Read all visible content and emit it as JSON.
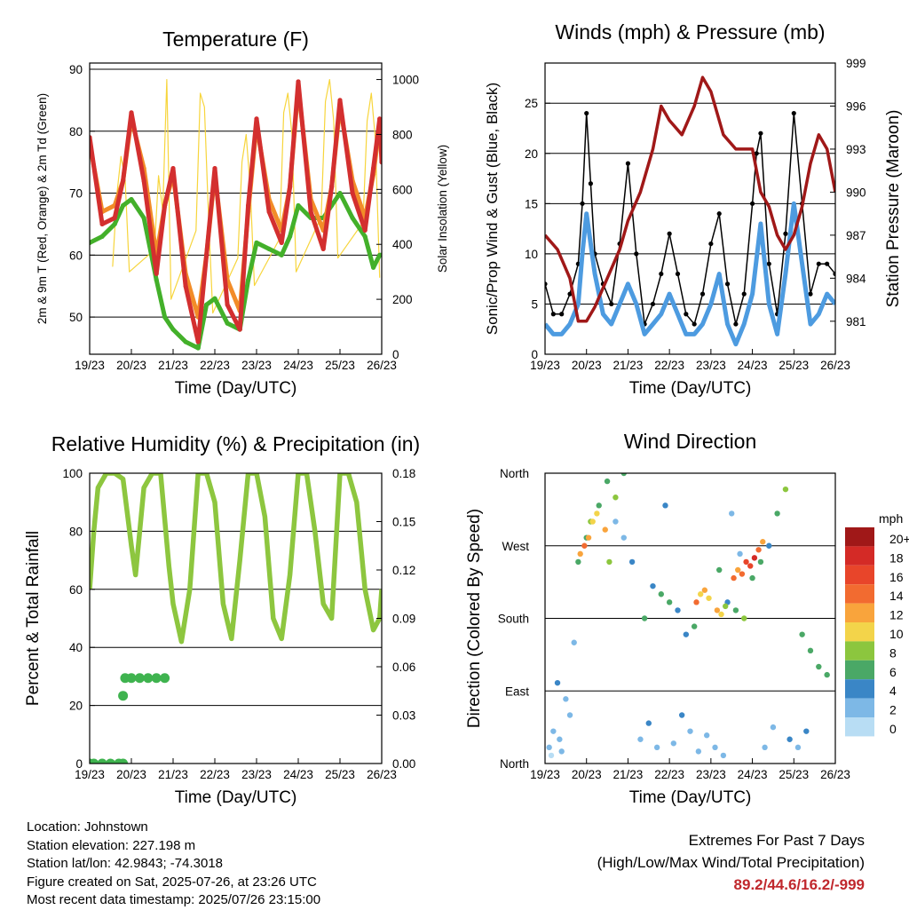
{
  "chart_data": [
    {
      "type": "line",
      "title": "Temperature (F)",
      "xlabel": "Time (Day/UTC)",
      "ylabel": "2m & 9m T (Red, Orange) & 2m Td (Green)",
      "y2label": "Solar Insolation (Yellow)",
      "x_ticks": [
        "19/23",
        "20/23",
        "21/23",
        "22/23",
        "23/23",
        "24/23",
        "25/23",
        "26/23"
      ],
      "xlim": [
        0,
        7
      ],
      "ylim": [
        44,
        91
      ],
      "yticks": [
        50,
        60,
        70,
        80,
        90
      ],
      "y2lim": [
        0,
        1060
      ],
      "y2ticks": [
        0,
        200,
        400,
        600,
        800,
        1000
      ],
      "colors": {
        "t2m": "#d32f2f",
        "t9m": "#f28c28",
        "td": "#43b02a",
        "solar": "#f7d53c"
      },
      "series": [
        {
          "key": "t2m",
          "x": [
            0,
            0.3,
            0.6,
            0.8,
            1.0,
            1.3,
            1.6,
            1.8,
            2.0,
            2.3,
            2.6,
            2.8,
            3.0,
            3.3,
            3.6,
            3.8,
            4.0,
            4.3,
            4.6,
            4.8,
            5.0,
            5.3,
            5.6,
            5.8,
            6.0,
            6.3,
            6.6,
            6.8,
            6.95,
            7.0
          ],
          "y": [
            79,
            65,
            66,
            72,
            83,
            72,
            57,
            68,
            74,
            55,
            46,
            60,
            74,
            52,
            48,
            68,
            82,
            67,
            62,
            71,
            88,
            67,
            61,
            71,
            85,
            70,
            64,
            74,
            82,
            75
          ]
        },
        {
          "key": "t9m",
          "x": [
            0,
            0.3,
            0.6,
            0.8,
            1.0,
            1.3,
            1.6,
            1.8,
            2.0,
            2.3,
            2.6,
            2.8,
            3.0,
            3.3,
            3.6,
            3.8,
            4.0,
            4.3,
            4.6,
            4.8,
            5.0,
            5.3,
            5.6,
            5.8,
            6.0,
            6.3,
            6.6,
            6.8,
            6.95,
            7.0
          ],
          "y": [
            78,
            67,
            68,
            72,
            82,
            74,
            60,
            68,
            73,
            57,
            50,
            60,
            73,
            56,
            51,
            67,
            81,
            69,
            64,
            71,
            87,
            69,
            64,
            71,
            84,
            72,
            66,
            73,
            81,
            76
          ]
        },
        {
          "key": "td",
          "x": [
            0,
            0.3,
            0.6,
            0.8,
            1.0,
            1.3,
            1.6,
            1.8,
            2.0,
            2.3,
            2.6,
            2.8,
            3.0,
            3.3,
            3.6,
            3.8,
            4.0,
            4.3,
            4.6,
            4.8,
            5.0,
            5.3,
            5.6,
            5.8,
            6.0,
            6.3,
            6.6,
            6.8,
            6.95,
            7.0
          ],
          "y": [
            62,
            63,
            65,
            68,
            69,
            66,
            56,
            50,
            48,
            46,
            45,
            52,
            53,
            49,
            48,
            56,
            62,
            61,
            60,
            63,
            68,
            66,
            66,
            68,
            70,
            66,
            63,
            58,
            60,
            60
          ]
        },
        {
          "key": "solar",
          "x": [
            0.55,
            0.65,
            0.75,
            0.85,
            0.95,
            1.55,
            1.65,
            1.75,
            1.85,
            1.95,
            2.55,
            2.65,
            2.75,
            2.85,
            2.95,
            3.55,
            3.65,
            3.75,
            3.85,
            3.95,
            4.55,
            4.65,
            4.75,
            4.85,
            4.95,
            5.55,
            5.65,
            5.75,
            5.85,
            5.95,
            6.55,
            6.65,
            6.75,
            6.85,
            6.95
          ],
          "y": [
            320,
            580,
            720,
            640,
            300,
            380,
            650,
            520,
            1000,
            200,
            450,
            950,
            900,
            500,
            150,
            350,
            700,
            800,
            600,
            250,
            420,
            880,
            950,
            800,
            300,
            500,
            920,
            1000,
            850,
            350,
            480,
            850,
            950,
            780,
            280
          ]
        }
      ]
    },
    {
      "type": "line",
      "title": "Winds (mph) & Pressure (mb)",
      "xlabel": "Time (Day/UTC)",
      "ylabel": "Sonic/Prop Wind & Gust (Blue, Black)",
      "y2label": "Station Pressure (Maroon)",
      "x_ticks": [
        "19/23",
        "20/23",
        "21/23",
        "22/23",
        "23/23",
        "24/23",
        "25/23",
        "26/23"
      ],
      "xlim": [
        0,
        7
      ],
      "ylim": [
        0,
        29
      ],
      "yticks": [
        0,
        5,
        10,
        15,
        20,
        25
      ],
      "y2lim": [
        978.7,
        999
      ],
      "y2ticks": [
        981,
        984,
        987,
        990,
        993,
        996,
        999
      ],
      "colors": {
        "wind": "#4d9be0",
        "gust": "#000000",
        "pressure": "#a01818"
      },
      "series": [
        {
          "key": "wind",
          "x": [
            0,
            0.2,
            0.4,
            0.6,
            0.8,
            0.9,
            1.0,
            1.2,
            1.4,
            1.6,
            1.8,
            2.0,
            2.2,
            2.4,
            2.6,
            2.8,
            3.0,
            3.2,
            3.4,
            3.6,
            3.8,
            4.0,
            4.2,
            4.4,
            4.6,
            4.8,
            5.0,
            5.2,
            5.4,
            5.6,
            5.8,
            6.0,
            6.2,
            6.4,
            6.6,
            6.8,
            7.0
          ],
          "y": [
            3,
            2,
            2,
            3,
            5,
            10,
            14,
            8,
            4,
            3,
            5,
            7,
            5,
            2,
            3,
            4,
            6,
            4,
            2,
            2,
            3,
            5,
            8,
            3,
            1,
            3,
            6,
            13,
            5,
            2,
            8,
            15,
            9,
            3,
            4,
            6,
            5
          ]
        },
        {
          "key": "gust",
          "x": [
            0,
            0.2,
            0.4,
            0.6,
            0.8,
            0.9,
            1.0,
            1.1,
            1.2,
            1.4,
            1.6,
            1.8,
            2.0,
            2.2,
            2.4,
            2.6,
            2.8,
            3.0,
            3.2,
            3.4,
            3.6,
            3.8,
            4.0,
            4.2,
            4.4,
            4.6,
            4.8,
            5.0,
            5.1,
            5.2,
            5.4,
            5.6,
            5.8,
            6.0,
            6.2,
            6.4,
            6.6,
            6.8,
            7.0
          ],
          "y": [
            7,
            4,
            4,
            6,
            9,
            15,
            24,
            17,
            10,
            7,
            5,
            11,
            19,
            10,
            3,
            5,
            8,
            12,
            8,
            4,
            3,
            6,
            11,
            14,
            7,
            3,
            6,
            15,
            20,
            22,
            9,
            4,
            12,
            24,
            15,
            6,
            9,
            9,
            8
          ]
        },
        {
          "key": "pressure",
          "x": [
            0,
            0.3,
            0.6,
            0.8,
            1.0,
            1.2,
            1.5,
            1.8,
            2.0,
            2.3,
            2.6,
            2.8,
            3.0,
            3.3,
            3.6,
            3.8,
            4.0,
            4.3,
            4.6,
            4.8,
            5.0,
            5.2,
            5.4,
            5.6,
            5.8,
            6.0,
            6.2,
            6.4,
            6.6,
            6.8,
            7.0
          ],
          "y": [
            987,
            986,
            984,
            981,
            981,
            982,
            984,
            986,
            988,
            990,
            993,
            996,
            995,
            994,
            996,
            998,
            997,
            994,
            993,
            993,
            993,
            990,
            989,
            987,
            986,
            987,
            989,
            992,
            994,
            993,
            990
          ]
        }
      ]
    },
    {
      "type": "line",
      "title": "Relative Humidity (%) & Precipitation (in)",
      "xlabel": "Time (Day/UTC)",
      "ylabel": "Percent & Total Rainfall",
      "x_ticks": [
        "19/23",
        "20/23",
        "21/23",
        "22/23",
        "23/23",
        "24/23",
        "25/23",
        "26/23"
      ],
      "xlim": [
        0,
        7
      ],
      "ylim": [
        0,
        100
      ],
      "yticks": [
        0,
        20,
        40,
        60,
        80,
        100
      ],
      "y2lim": [
        0,
        0.18
      ],
      "y2ticks": [
        "0.00",
        "0.03",
        "0.06",
        "0.09",
        "0.12",
        "0.15",
        "0.18"
      ],
      "colors": {
        "rh": "#8dc63f",
        "precip": "#3fb34f"
      },
      "series": [
        {
          "key": "rh",
          "x": [
            0,
            0.1,
            0.2,
            0.4,
            0.6,
            0.8,
            1.0,
            1.1,
            1.3,
            1.5,
            1.7,
            1.9,
            2.0,
            2.2,
            2.4,
            2.6,
            2.8,
            3.0,
            3.2,
            3.4,
            3.6,
            3.8,
            4.0,
            4.2,
            4.4,
            4.6,
            4.8,
            5.0,
            5.2,
            5.4,
            5.6,
            5.8,
            6.0,
            6.2,
            6.4,
            6.6,
            6.8,
            6.95,
            7.0
          ],
          "y": [
            60,
            80,
            95,
            100,
            100,
            98,
            75,
            65,
            95,
            100,
            100,
            68,
            55,
            42,
            60,
            100,
            100,
            90,
            55,
            43,
            70,
            100,
            100,
            85,
            50,
            43,
            65,
            100,
            100,
            80,
            55,
            50,
            100,
            100,
            90,
            60,
            46,
            50,
            60
          ]
        },
        {
          "key": "precip",
          "x": [
            0,
            0.1,
            0.3,
            0.5,
            0.7,
            0.8,
            0.8,
            0.85,
            1.0,
            1.2,
            1.4,
            1.6,
            1.8
          ],
          "y": [
            0,
            0,
            0,
            0,
            0,
            0,
            0.042,
            0.053,
            0.053,
            0.053,
            0.053,
            0.053,
            0.053
          ]
        }
      ]
    },
    {
      "type": "scatter",
      "title": "Wind Direction",
      "xlabel": "Time (Day/UTC)",
      "ylabel": "Direction (Colored By Speed)",
      "x_ticks": [
        "19/23",
        "20/23",
        "21/23",
        "22/23",
        "23/23",
        "24/23",
        "25/23",
        "26/23"
      ],
      "xlim": [
        0,
        7
      ],
      "ylim": [
        0,
        360
      ],
      "ytick_labels": [
        "North",
        "East",
        "South",
        "West",
        "North"
      ],
      "legend_title": "mph",
      "legend_labels": [
        "20+",
        "18",
        "16",
        "14",
        "12",
        "10",
        "8",
        "6",
        "4",
        "2",
        "0"
      ],
      "legend_colors": [
        "#a01818",
        "#d42a26",
        "#e8452a",
        "#f26b30",
        "#f9a43c",
        "#f3d44a",
        "#8cc63e",
        "#4aa866",
        "#3a86c6",
        "#7db8e6",
        "#b8ddf4"
      ],
      "series": [
        {
          "name": "low",
          "x": [
            0.1,
            0.2,
            0.4,
            0.6,
            0.3,
            0.5,
            0.15,
            0.35,
            2.3,
            2.5,
            2.7,
            3.1,
            3.3,
            3.5,
            3.7,
            3.9,
            4.1,
            4.3,
            5.9,
            6.1,
            6.3,
            0.7,
            1.7,
            1.9,
            2.1,
            2.9,
            4.5,
            4.7,
            5.3,
            5.5
          ],
          "y": [
            20,
            40,
            15,
            60,
            100,
            80,
            10,
            30,
            30,
            50,
            20,
            25,
            60,
            40,
            15,
            35,
            20,
            10,
            30,
            20,
            40,
            150,
            300,
            280,
            250,
            320,
            310,
            260,
            20,
            45
          ],
          "speed": [
            1,
            2,
            1,
            2,
            3,
            1,
            0,
            2,
            2,
            3,
            1,
            2,
            3,
            2,
            1,
            2,
            2,
            1,
            3,
            2,
            3,
            2,
            2,
            1,
            3,
            3,
            2,
            2,
            1,
            2
          ]
        },
        {
          "name": "mid",
          "x": [
            0.8,
            1.0,
            1.1,
            1.3,
            1.5,
            1.7,
            1.9,
            2.4,
            2.6,
            2.8,
            3.0,
            3.2,
            3.4,
            3.6,
            4.2,
            4.4,
            4.6,
            4.8,
            5.0,
            5.2,
            5.4,
            5.6,
            5.8,
            6.2,
            6.4,
            6.6,
            6.8
          ],
          "y": [
            250,
            280,
            300,
            320,
            350,
            330,
            360,
            180,
            220,
            210,
            200,
            190,
            160,
            170,
            240,
            200,
            190,
            180,
            230,
            250,
            270,
            310,
            340,
            160,
            140,
            120,
            110
          ],
          "speed": [
            5,
            6,
            7,
            6,
            5,
            7,
            6,
            5,
            4,
            6,
            5,
            4,
            3,
            5,
            5,
            4,
            6,
            7,
            6,
            5,
            4,
            6,
            7,
            6,
            5,
            6,
            5
          ]
        },
        {
          "name": "high",
          "x": [
            0.85,
            0.95,
            1.05,
            1.15,
            1.25,
            1.45,
            1.55,
            3.65,
            3.75,
            3.85,
            3.95,
            4.15,
            4.25,
            4.35,
            4.55,
            4.65,
            4.75,
            4.85,
            4.95,
            5.05,
            5.15,
            5.25
          ],
          "y": [
            260,
            270,
            280,
            300,
            310,
            290,
            250,
            200,
            210,
            215,
            205,
            190,
            185,
            195,
            230,
            240,
            235,
            250,
            245,
            255,
            265,
            275
          ],
          "speed": [
            12,
            14,
            11,
            9,
            10,
            12,
            8,
            13,
            10,
            11,
            9,
            12,
            10,
            8,
            14,
            12,
            13,
            16,
            15,
            18,
            13,
            11
          ]
        }
      ]
    }
  ],
  "footer": {
    "location": "Location: Johnstown",
    "elevation": "Station elevation: 227.198 m",
    "latlon": "Station lat/lon: 42.9843; -74.3018",
    "created": "Figure created on Sat, 2025-07-26, at 23:26 UTC",
    "recent": "Most recent data timestamp: 2025/07/26 23:15:00",
    "extremes_title": "Extremes For Past 7 Days",
    "extremes_sub": "(High/Low/Max Wind/Total Precipitation)",
    "extremes_values": "89.2/44.6/16.2/-999"
  }
}
